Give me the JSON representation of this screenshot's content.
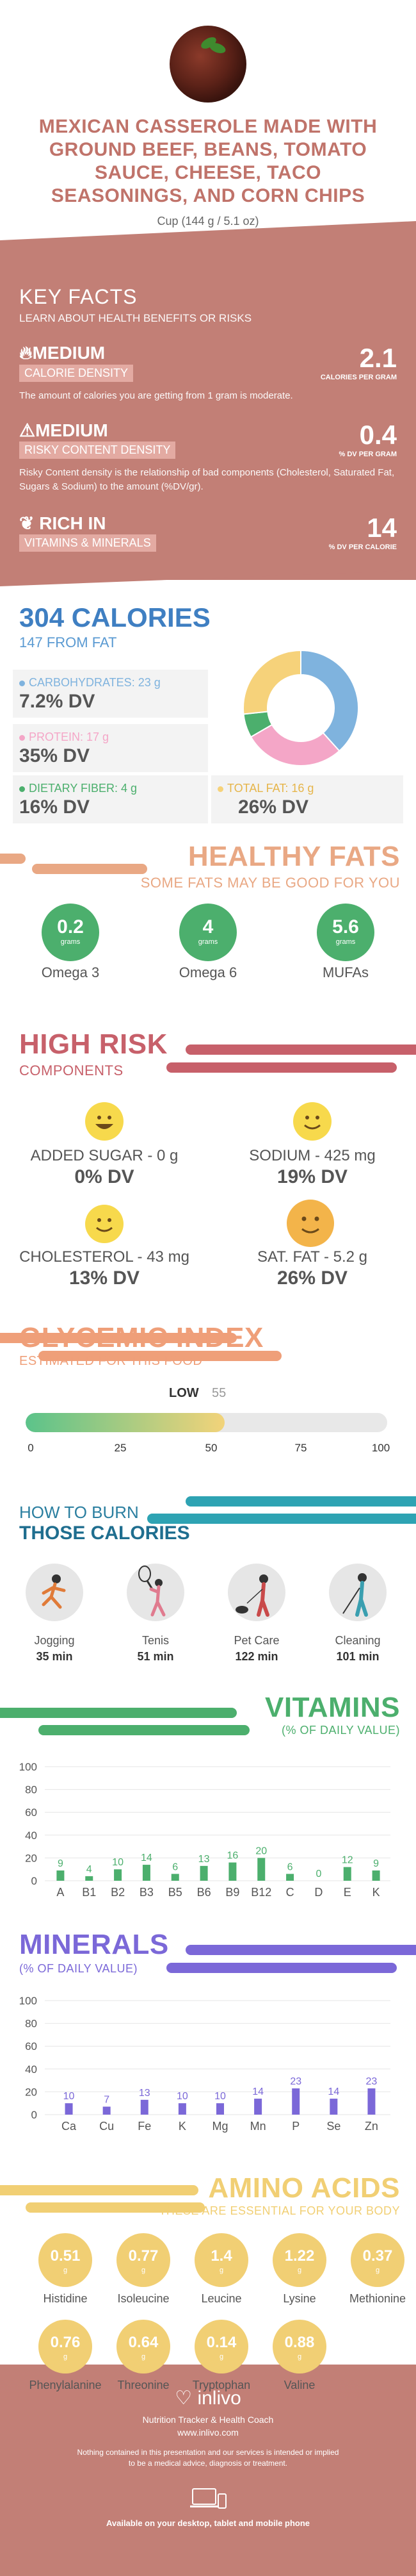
{
  "header": {
    "title_lines": [
      "MEXICAN CASSEROLE MADE WITH",
      "GROUND BEEF, BEANS, TOMATO",
      "SAUCE, CHEESE, TACO",
      "SEASONINGS, AND CORN CHIPS"
    ],
    "serving": "Cup (144 g / 5.1 oz)"
  },
  "key_facts": {
    "title": "KEY FACTS",
    "subtitle": "LEARN ABOUT HEALTH BENEFITS OR RISKS",
    "items": [
      {
        "level": "MEDIUM",
        "badge": "CALORIE DENSITY",
        "value": "2.1",
        "unit": "CALORIES PER GRAM",
        "text": "The amount of calories you are getting from 1 gram is moderate.",
        "icon": "flame-icon"
      },
      {
        "level": "MEDIUM",
        "badge": "RISKY CONTENT DENSITY",
        "value": "0.4",
        "unit": "% DV PER GRAM",
        "text": "Risky Content density is the relationship of bad components (Cholesterol, Saturated Fat, Sugars & Sodium) to the amount (%DV/gr).",
        "icon": "warning-icon"
      },
      {
        "level": "RICH  IN",
        "badge": "VITAMINS & MINERALS",
        "value": "14",
        "unit": "% DV PER CALORIE",
        "text": "",
        "icon": "leaf-icon"
      }
    ]
  },
  "calories": {
    "title": "304 CALORIES",
    "from_fat": "147 FROM FAT",
    "macros": [
      {
        "label": "CARBOHYDRATES: 23 g",
        "dv": "7.2% DV",
        "color": "#7fb3de"
      },
      {
        "label": "PROTEIN: 17 g",
        "dv": "35% DV",
        "color": "#f4a6c7"
      },
      {
        "label": "DIETARY FIBER: 4 g",
        "dv": "16% DV",
        "color": "#4caf6d"
      },
      {
        "label": "TOTAL FAT: 16 g",
        "dv": "26% DV",
        "color": "#f6d27a"
      }
    ],
    "donut": [
      {
        "name": "Carbohydrates",
        "value": 23,
        "color": "#7fb3de"
      },
      {
        "name": "Protein",
        "value": 17,
        "color": "#f4a6c7"
      },
      {
        "name": "Dietary Fiber",
        "value": 4,
        "color": "#4caf6d"
      },
      {
        "name": "Total Fat",
        "value": 16,
        "color": "#f6d27a"
      }
    ]
  },
  "healthy_fats": {
    "title": "HEALTHY FATS",
    "subtitle": "SOME FATS MAY BE GOOD FOR YOU",
    "items": [
      {
        "value": "0.2",
        "unit": "grams",
        "name": "Omega 3"
      },
      {
        "value": "4",
        "unit": "grams",
        "name": "Omega 6"
      },
      {
        "value": "5.6",
        "unit": "grams",
        "name": "MUFAs"
      }
    ]
  },
  "high_risk": {
    "title": "HIGH RISK",
    "subtitle": "COMPONENTS",
    "items": [
      {
        "label": "ADDED SUGAR - 0 g",
        "dv": "0% DV",
        "face": "happy-face-icon"
      },
      {
        "label": "SODIUM - 425 mg",
        "dv": "19% DV",
        "face": "smile-face-icon"
      },
      {
        "label": "CHOLESTEROL - 43 mg",
        "dv": "13% DV",
        "face": "smile-face-icon"
      },
      {
        "label": "SAT. FAT - 5.2 g",
        "dv": "26% DV",
        "face": "neutral-face-icon"
      }
    ]
  },
  "glycemic": {
    "title": "GLYCEMIC INDEX",
    "subtitle": "ESTIMATED FOR THIS FOOD",
    "level": "LOW",
    "value": "55",
    "fill_fraction": 0.55,
    "ticks": [
      "0",
      "25",
      "50",
      "75",
      "100"
    ]
  },
  "burn": {
    "title_1": "HOW TO BURN",
    "title_2": "THOSE CALORIES",
    "items": [
      {
        "name": "Jogging",
        "min": "35 min",
        "icon": "jogging-icon"
      },
      {
        "name": "Tenis",
        "min": "51 min",
        "icon": "tennis-icon"
      },
      {
        "name": "Pet Care",
        "min": "122 min",
        "icon": "pet-care-icon"
      },
      {
        "name": "Cleaning",
        "min": "101 min",
        "icon": "cleaning-icon"
      }
    ]
  },
  "vitamins": {
    "title": "VITAMINS",
    "subtitle": "(% OF DAILY VALUE)",
    "color": "#4caf6d"
  },
  "minerals": {
    "title": "MINERALS",
    "subtitle": "(% OF DAILY VALUE)",
    "color": "#7b68d8"
  },
  "chart_data": [
    {
      "type": "bar",
      "title": "VITAMINS",
      "categories": [
        "A",
        "B1",
        "B2",
        "B3",
        "B5",
        "B6",
        "B9",
        "B12",
        "C",
        "D",
        "E",
        "K"
      ],
      "values": [
        9,
        4,
        10,
        14,
        6,
        13,
        16,
        20,
        6,
        0,
        12,
        9
      ],
      "ylim": [
        0,
        100
      ],
      "yticks": [
        "100",
        "80",
        "60",
        "40",
        "20",
        "0"
      ]
    },
    {
      "type": "bar",
      "title": "MINERALS",
      "categories": [
        "Ca",
        "Cu",
        "Fe",
        "K",
        "Mg",
        "Mn",
        "P",
        "Se",
        "Zn"
      ],
      "values": [
        10,
        7,
        13,
        10,
        10,
        14,
        23,
        14,
        23
      ],
      "ylim": [
        0,
        100
      ],
      "yticks": [
        "100",
        "80",
        "60",
        "40",
        "20",
        "0"
      ]
    }
  ],
  "amino_acids": {
    "title": "AMINO ACIDS",
    "subtitle": "THESE ARE ESSENTIAL FOR YOUR BODY",
    "unit": "g",
    "items": [
      {
        "value": "0.51",
        "name": "Histidine"
      },
      {
        "value": "0.77",
        "name": "Isoleucine"
      },
      {
        "value": "1.4",
        "name": "Leucine"
      },
      {
        "value": "1.22",
        "name": "Lysine"
      },
      {
        "value": "0.37",
        "name": "Methionine"
      },
      {
        "value": "0.76",
        "name": "Phenylalanine"
      },
      {
        "value": "0.64",
        "name": "Threonine"
      },
      {
        "value": "0.14",
        "name": "Tryptophan"
      },
      {
        "value": "0.88",
        "name": "Valine"
      }
    ]
  },
  "footer": {
    "brand": "inlivo",
    "tagline": "Nutrition Tracker & Health Coach",
    "url": "www.inlivo.com",
    "disclaimer_1": "Nothing contained in this presentation and our services is intended or implied",
    "disclaimer_2": "to be a medical advice, diagnosis or treatment.",
    "available": "Available on your desktop, tablet and mobile phone"
  }
}
